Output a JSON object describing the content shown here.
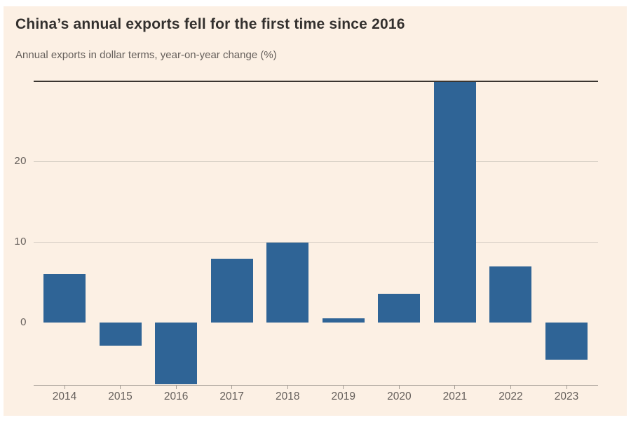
{
  "page": {
    "background": "#FFFFFF",
    "panel_background": "#FCF0E4",
    "title_color": "#33302E",
    "text_color": "#66605C"
  },
  "chart_data": {
    "type": "bar",
    "title": "China’s annual exports fell for the first time since 2016",
    "subtitle": "Annual exports in dollar terms, year-on-year change (%)",
    "categories": [
      "2014",
      "2015",
      "2016",
      "2017",
      "2018",
      "2019",
      "2020",
      "2021",
      "2022",
      "2023"
    ],
    "values": [
      6.0,
      -2.9,
      -7.7,
      7.9,
      9.9,
      0.5,
      3.6,
      29.9,
      7.0,
      -4.6
    ],
    "xlabel": "",
    "ylabel": "",
    "yticks": [
      0,
      10,
      20
    ],
    "ylim": [
      -7.75,
      30.05
    ],
    "grid": true,
    "legend": "none",
    "bar_color": "#2F6496",
    "zero_line_color": "#3A3530",
    "grid_color": "#D6CEC4",
    "axis_color": "#A59D95",
    "note": "2016 bar is clipped at the lower edge of the plot"
  }
}
